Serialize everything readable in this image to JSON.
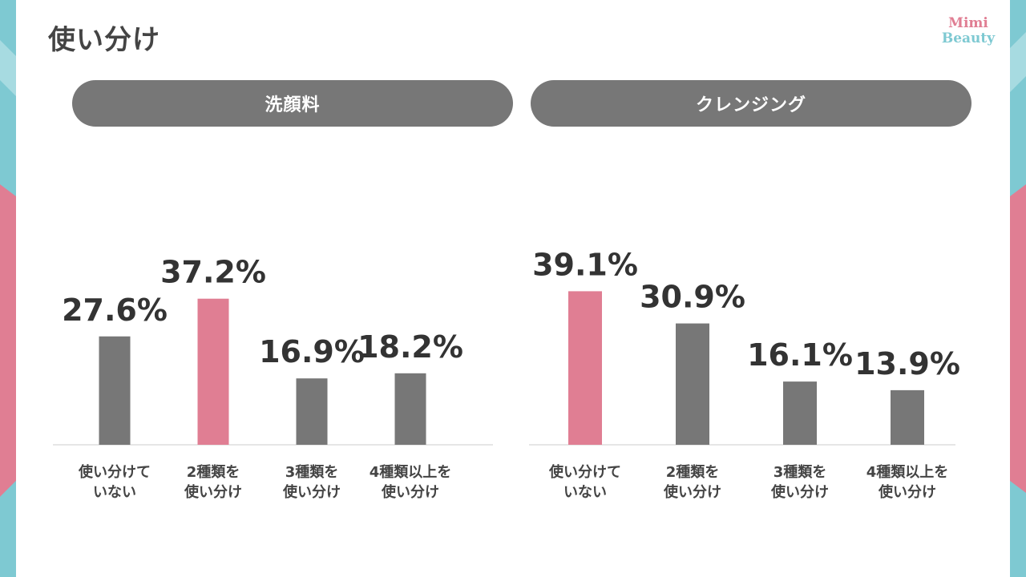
{
  "page": {
    "title": "使い分け",
    "logo_line1": "Mimi",
    "logo_line2": "Beauty"
  },
  "colors": {
    "highlight": "#e07e93",
    "bar": "#777777",
    "pill": "#777777",
    "edge_teal": "#7ec9d2",
    "edge_pink": "#e07e93"
  },
  "chart_data": [
    {
      "type": "bar",
      "title": "洗顔料",
      "categories": [
        [
          "使い分けて",
          "いない"
        ],
        [
          "2種類を",
          "使い分け"
        ],
        [
          "3種類を",
          "使い分け"
        ],
        [
          "4種類以上を",
          "使い分け"
        ]
      ],
      "values": [
        27.6,
        37.2,
        16.9,
        18.2
      ],
      "value_labels": [
        "27.6%",
        "37.2%",
        "16.9%",
        "18.2%"
      ],
      "highlight_index": 1,
      "ylim": [
        0,
        50
      ],
      "grid": false,
      "xlabel": "",
      "ylabel": ""
    },
    {
      "type": "bar",
      "title": "クレンジング",
      "categories": [
        [
          "使い分けて",
          "いない"
        ],
        [
          "2種類を",
          "使い分け"
        ],
        [
          "3種類を",
          "使い分け"
        ],
        [
          "4種類以上を",
          "使い分け"
        ]
      ],
      "values": [
        39.1,
        30.9,
        16.1,
        13.9
      ],
      "value_labels": [
        "39.1%",
        "30.9%",
        "16.1%",
        "13.9%"
      ],
      "highlight_index": 0,
      "ylim": [
        0,
        50
      ],
      "grid": false,
      "xlabel": "",
      "ylabel": ""
    }
  ]
}
